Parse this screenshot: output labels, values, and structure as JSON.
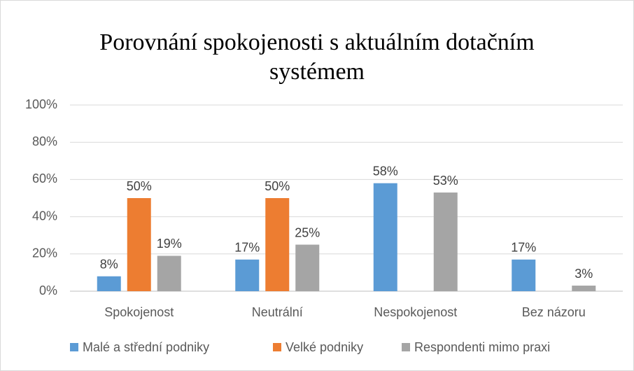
{
  "chart_data": {
    "type": "bar",
    "title": "Porovnání spokojenosti s aktuálním dotačním systémem",
    "categories": [
      "Spokojenost",
      "Neutrální",
      "Nespokojenost",
      "Bez názoru"
    ],
    "series": [
      {
        "name": "Malé a střední podniky",
        "color": "#5b9bd5",
        "values": [
          8,
          17,
          58,
          17
        ],
        "value_labels": [
          "8%",
          "17%",
          "58%",
          "17%"
        ]
      },
      {
        "name": "Velké podniky",
        "color": "#ed7d31",
        "values": [
          50,
          50,
          null,
          null
        ],
        "value_labels": [
          "50%",
          "50%",
          null,
          null
        ]
      },
      {
        "name": "Respondenti mimo praxi",
        "color": "#a5a5a5",
        "values": [
          19,
          25,
          53,
          3
        ],
        "value_labels": [
          "19%",
          "25%",
          "53%",
          "3%"
        ]
      }
    ],
    "ylim": [
      0,
      100
    ],
    "yticks": [
      {
        "value": 0,
        "label": "0%"
      },
      {
        "value": 20,
        "label": "20%"
      },
      {
        "value": 40,
        "label": "40%"
      },
      {
        "value": 60,
        "label": "60%"
      },
      {
        "value": 80,
        "label": "80%"
      },
      {
        "value": 100,
        "label": "100%"
      }
    ],
    "grid": true,
    "legend": "bottom"
  }
}
